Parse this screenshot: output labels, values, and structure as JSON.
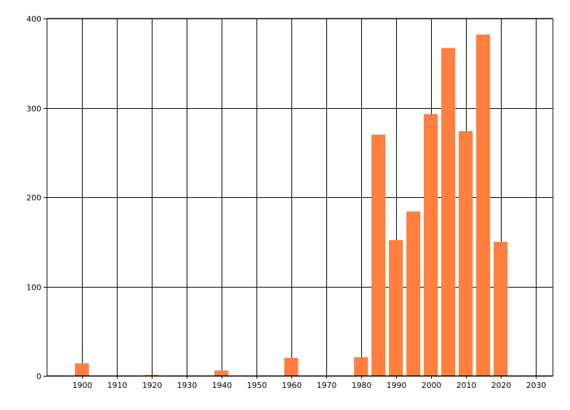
{
  "chart_data": {
    "type": "bar",
    "x": [
      1900,
      1920,
      1940,
      1960,
      1980,
      1985,
      1990,
      1995,
      2000,
      2005,
      2010,
      2015,
      2020
    ],
    "series": [
      {
        "values": [
          14,
          1,
          6,
          20,
          21,
          270,
          152,
          184,
          293,
          367,
          274,
          382,
          150
        ]
      }
    ],
    "xticks": [
      "1900",
      "1910",
      "1920",
      "1930",
      "1940",
      "1950",
      "1960",
      "1970",
      "1980",
      "1990",
      "2000",
      "2010",
      "2020",
      "2030"
    ],
    "yticks": [
      "0",
      "100",
      "200",
      "300",
      "400"
    ],
    "xlim": [
      1890,
      2035
    ],
    "ylim": [
      0,
      400
    ],
    "grid": true,
    "bar_color": "#FF7F3F",
    "title": "",
    "xlabel": "",
    "ylabel": ""
  }
}
